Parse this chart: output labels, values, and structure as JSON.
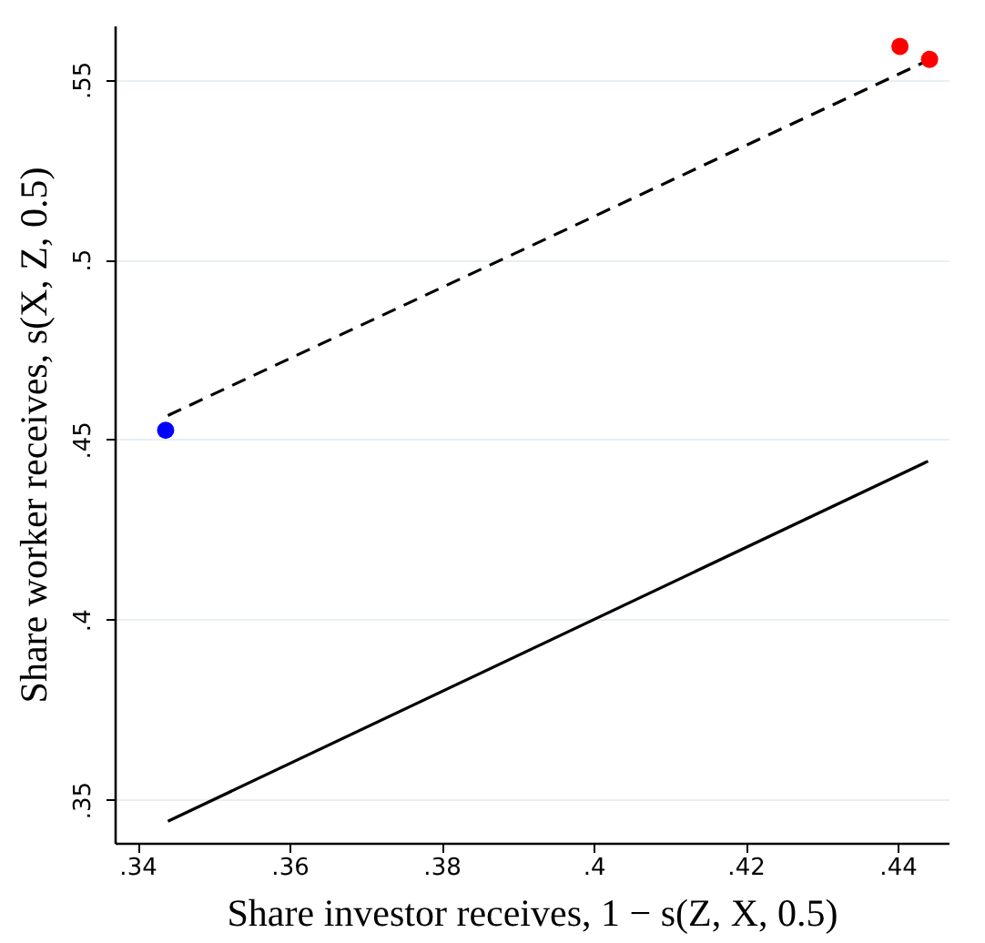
{
  "chart_data": {
    "type": "scatter",
    "xlabel": "Share investor receives, 1 − s(Z, X, 0.5)",
    "ylabel": "Share worker receives, s(X, Z, 0.5)",
    "xlim": [
      0.337,
      0.4467
    ],
    "ylim": [
      0.338,
      0.565
    ],
    "xticks": [
      {
        "value": 0.34,
        "label": ".34"
      },
      {
        "value": 0.36,
        "label": ".36"
      },
      {
        "value": 0.38,
        "label": ".38"
      },
      {
        "value": 0.4,
        "label": ".4"
      },
      {
        "value": 0.42,
        "label": ".42"
      },
      {
        "value": 0.44,
        "label": ".44"
      }
    ],
    "yticks": [
      {
        "value": 0.35,
        "label": ".35"
      },
      {
        "value": 0.4,
        "label": ".4"
      },
      {
        "value": 0.45,
        "label": ".45"
      },
      {
        "value": 0.5,
        "label": ".5"
      },
      {
        "value": 0.55,
        "label": ".55"
      }
    ],
    "grid": "y",
    "series": [
      {
        "type": "line",
        "line_style": "solid",
        "marker": "none",
        "color": "#000000",
        "x": [
          0.344,
          0.444
        ],
        "values": [
          0.344,
          0.444
        ]
      },
      {
        "type": "line",
        "line_style": "dashed",
        "marker": "none",
        "color": "#000000",
        "x": [
          0.344,
          0.4442
        ],
        "values": [
          0.4567,
          0.5555
        ]
      },
      {
        "type": "scatter",
        "marker": "circle",
        "color": "#0000ff",
        "x": [
          0.3437
        ],
        "values": [
          0.4526
        ]
      },
      {
        "type": "scatter",
        "marker": "circle",
        "color": "#ff0000",
        "x": [
          0.4403,
          0.4442
        ],
        "values": [
          0.5592,
          0.5556
        ]
      }
    ]
  }
}
